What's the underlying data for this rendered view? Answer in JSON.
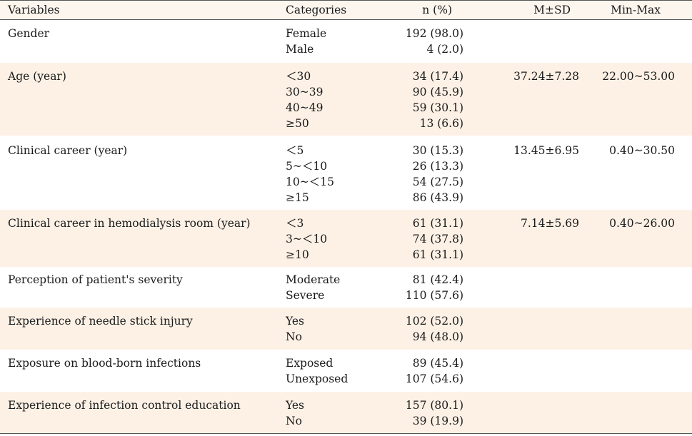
{
  "headers": {
    "variables": "Variables",
    "categories": "Categories",
    "n": "n (%)",
    "msd": "M±SD",
    "minmax": "Min-Max"
  },
  "rows": [
    {
      "variable": "Gender",
      "categories": [
        "Female",
        "Male"
      ],
      "n": [
        "192 (98.0)",
        "4 (2.0)"
      ],
      "msd": "",
      "minmax": ""
    },
    {
      "variable": "Age (year)",
      "categories": [
        "＜30",
        "30~39",
        "40~49",
        "≥50"
      ],
      "n": [
        "34 (17.4)",
        "90 (45.9)",
        "59 (30.1)",
        "13 (6.6)"
      ],
      "msd": "37.24±7.28",
      "minmax": "22.00~53.00"
    },
    {
      "variable": "Clinical career (year)",
      "categories": [
        "＜5",
        "5~＜10",
        "10~＜15",
        "≥15"
      ],
      "n": [
        "30 (15.3)",
        "26 (13.3)",
        "54 (27.5)",
        "86 (43.9)"
      ],
      "msd": "13.45±6.95",
      "minmax": "0.40~30.50"
    },
    {
      "variable": "Clinical career in hemodialysis room (year)",
      "categories": [
        "＜3",
        "3~＜10",
        "≥10"
      ],
      "n": [
        "61 (31.1)",
        "74 (37.8)",
        "61 (31.1)"
      ],
      "msd": "7.14±5.69",
      "minmax": "0.40~26.00"
    },
    {
      "variable": "Perception of patient's severity",
      "categories": [
        "Moderate",
        "Severe"
      ],
      "n": [
        "81 (42.4)",
        "110 (57.6)"
      ],
      "msd": "",
      "minmax": ""
    },
    {
      "variable": "Experience of needle stick injury",
      "categories": [
        "Yes",
        "No"
      ],
      "n": [
        "102 (52.0)",
        "94 (48.0)"
      ],
      "msd": "",
      "minmax": ""
    },
    {
      "variable": "Exposure on blood-born infections",
      "categories": [
        "Exposed",
        "Unexposed"
      ],
      "n": [
        "89 (45.4)",
        "107 (54.6)"
      ],
      "msd": "",
      "minmax": ""
    },
    {
      "variable": "Experience of infection control education",
      "categories": [
        "Yes",
        "No"
      ],
      "n": [
        "157 (80.1)",
        "39 (19.9)"
      ],
      "msd": "",
      "minmax": ""
    }
  ]
}
